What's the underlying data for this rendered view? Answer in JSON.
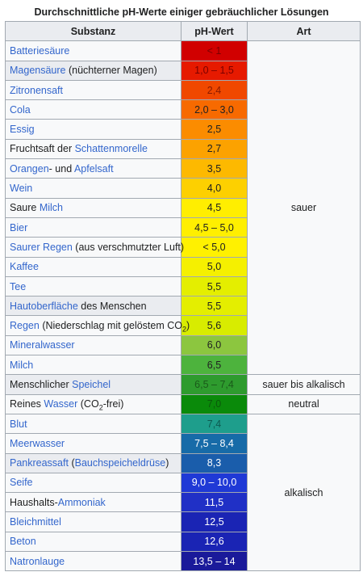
{
  "title": "Durchschnittliche pH-Werte einiger gebräuchlicher Lösungen",
  "headers": {
    "substanz": "Substanz",
    "ph": "pH-Wert",
    "art": "Art"
  },
  "rows": [
    {
      "parts": [
        {
          "t": "Batteriesäure",
          "link": true
        }
      ],
      "ph": "< 1",
      "color": "#d10000",
      "text_color": "#7a0000"
    },
    {
      "parts": [
        {
          "t": "Magensäure",
          "link": true
        },
        {
          "t": " (nüchterner Magen)",
          "link": false
        }
      ],
      "ph": "1,0 – 1,5",
      "color": "#e61a00",
      "text_color": "#7a0000",
      "highlight": true
    },
    {
      "parts": [
        {
          "t": "Zitronensaft",
          "link": true
        }
      ],
      "ph": "2,4",
      "color": "#f04800",
      "text_color": "#8a1a00"
    },
    {
      "parts": [
        {
          "t": "Cola",
          "link": true
        }
      ],
      "ph": "2,0 – 3,0",
      "color": "#f76a00",
      "text_color": "#202122"
    },
    {
      "parts": [
        {
          "t": "Essig",
          "link": true
        }
      ],
      "ph": "2,5",
      "color": "#fb8c00",
      "text_color": "#202122"
    },
    {
      "parts": [
        {
          "t": "Fruchtsaft der ",
          "link": false
        },
        {
          "t": "Schattenmorelle",
          "link": true
        }
      ],
      "ph": "2,7",
      "color": "#fca200",
      "text_color": "#202122"
    },
    {
      "parts": [
        {
          "t": "Orangen",
          "link": true
        },
        {
          "t": "- und ",
          "link": false
        },
        {
          "t": "Apfelsaft",
          "link": true
        }
      ],
      "ph": "3,5",
      "color": "#fdb900",
      "text_color": "#202122"
    },
    {
      "parts": [
        {
          "t": "Wein",
          "link": true
        }
      ],
      "ph": "4,0",
      "color": "#fdd000",
      "text_color": "#202122"
    },
    {
      "parts": [
        {
          "t": "Saure ",
          "link": false
        },
        {
          "t": "Milch",
          "link": true
        }
      ],
      "ph": "4,5",
      "color": "#ffee00",
      "text_color": "#202122"
    },
    {
      "parts": [
        {
          "t": "Bier",
          "link": true
        }
      ],
      "ph": "4,5 – 5,0",
      "color": "#ffef00",
      "text_color": "#202122"
    },
    {
      "parts": [
        {
          "t": "Saurer Regen",
          "link": true
        },
        {
          "t": " (aus verschmutzter Luft)",
          "link": false
        }
      ],
      "ph": "< 5,0",
      "color": "#fff100",
      "text_color": "#202122"
    },
    {
      "parts": [
        {
          "t": "Kaffee",
          "link": true
        }
      ],
      "ph": "5,0",
      "color": "#f5f000",
      "text_color": "#202122"
    },
    {
      "parts": [
        {
          "t": "Tee",
          "link": true
        }
      ],
      "ph": "5,5",
      "color": "#e4ee00",
      "text_color": "#202122"
    },
    {
      "parts": [
        {
          "t": "Hautoberfläche",
          "link": true
        },
        {
          "t": " des Menschen",
          "link": false
        }
      ],
      "ph": "5,5",
      "color": "#e4ee00",
      "text_color": "#202122",
      "highlight": true
    },
    {
      "parts": [
        {
          "t": "Regen",
          "link": true
        },
        {
          "t": " (Niederschlag mit gelöstem CO",
          "link": false
        },
        {
          "t": "2",
          "link": false,
          "sub": true
        },
        {
          "t": ")",
          "link": false
        }
      ],
      "ph": "5,6",
      "color": "#d8ec00",
      "text_color": "#202122"
    },
    {
      "parts": [
        {
          "t": "Mineralwasser",
          "link": true
        }
      ],
      "ph": "6,0",
      "color": "#8cc63f",
      "text_color": "#202122"
    },
    {
      "parts": [
        {
          "t": "Milch",
          "link": true
        }
      ],
      "ph": "6,5",
      "color": "#4db33d",
      "text_color": "#202122"
    },
    {
      "parts": [
        {
          "t": "Menschlicher ",
          "link": false
        },
        {
          "t": "Speichel",
          "link": true
        }
      ],
      "ph": "6,5 – 7,4",
      "color": "#2e9b2e",
      "text_color": "#1a5a1a",
      "highlight": true
    },
    {
      "parts": [
        {
          "t": "Reines ",
          "link": false
        },
        {
          "t": "Wasser",
          "link": true
        },
        {
          "t": " (CO",
          "link": false
        },
        {
          "t": "2",
          "link": false,
          "sub": true
        },
        {
          "t": "-frei)",
          "link": false
        }
      ],
      "ph": "7,0",
      "color": "#0a8a0a",
      "text_color": "#0a5a0a"
    },
    {
      "parts": [
        {
          "t": "Blut",
          "link": true
        }
      ],
      "ph": "7,4",
      "color": "#1e9e8c",
      "text_color": "#0d5a50"
    },
    {
      "parts": [
        {
          "t": "Meerwasser",
          "link": true
        }
      ],
      "ph": "7,5 – 8,4",
      "color": "#176ba8",
      "text_color": "#ffffff"
    },
    {
      "parts": [
        {
          "t": "Pankreassaft",
          "link": true
        },
        {
          "t": " (",
          "link": false
        },
        {
          "t": "Bauchspeicheldrüse",
          "link": true
        },
        {
          "t": ")",
          "link": false
        }
      ],
      "ph": "8,3",
      "color": "#1a5dab",
      "text_color": "#ffffff",
      "highlight": true
    },
    {
      "parts": [
        {
          "t": "Seife",
          "link": true
        }
      ],
      "ph": "9,0 – 10,0",
      "color": "#1f39d6",
      "text_color": "#ffffff"
    },
    {
      "parts": [
        {
          "t": "Haushalts-",
          "link": false
        },
        {
          "t": "Ammoniak",
          "link": true
        }
      ],
      "ph": "11,5",
      "color": "#2030c6",
      "text_color": "#ffffff"
    },
    {
      "parts": [
        {
          "t": "Bleichmittel",
          "link": true
        }
      ],
      "ph": "12,5",
      "color": "#1a24b4",
      "text_color": "#ffffff"
    },
    {
      "parts": [
        {
          "t": "Beton",
          "link": true
        }
      ],
      "ph": "12,6",
      "color": "#1a24b4",
      "text_color": "#ffffff"
    },
    {
      "parts": [
        {
          "t": "Natronlauge",
          "link": true
        }
      ],
      "ph": "13,5 – 14",
      "color": "#1a1a9a",
      "text_color": "#ffffff"
    }
  ],
  "art_groups": [
    {
      "label": "sauer",
      "rows": 17
    },
    {
      "label": "sauer bis alkalisch",
      "rows": 1
    },
    {
      "label": "neutral",
      "rows": 1
    },
    {
      "label": "alkalisch",
      "rows": 8
    }
  ]
}
